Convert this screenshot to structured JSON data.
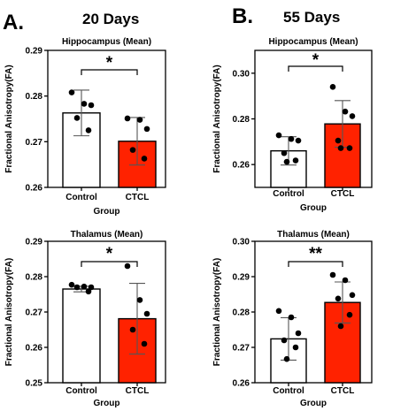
{
  "figure": {
    "groups": [
      {
        "letter": "A.",
        "condition": "20 Days"
      },
      {
        "letter": "B.",
        "condition": "55 Days"
      }
    ]
  },
  "chart_data": [
    {
      "type": "bar",
      "title": "Hippocampus (Mean)",
      "xlabel": "Group",
      "ylabel": "Fractional Anisotropy(FA)",
      "ylim": [
        0.26,
        0.29
      ],
      "yticks": [
        "0.26",
        "0.27",
        "0.28",
        "0.29"
      ],
      "categories": [
        "Control",
        "CTCL"
      ],
      "values": [
        0.2763,
        0.2701
      ],
      "errors": [
        0.005,
        0.0052
      ],
      "fill_colors": [
        "#ffffff",
        "#ff2200"
      ],
      "points": [
        [
          0.2808,
          0.2783,
          0.278,
          0.2752,
          0.2725
        ],
        [
          0.2751,
          0.2748,
          0.2728,
          0.2682,
          0.2663
        ]
      ],
      "significance": "*"
    },
    {
      "type": "bar",
      "title": "Hippocampus (Mean)",
      "xlabel": "Group",
      "ylabel": "Fractional Anisotropy(FA)",
      "ylim": [
        0.25,
        0.31
      ],
      "yticks": [
        "0.26",
        "0.28",
        "0.30"
      ],
      "categories": [
        "Control",
        "CTCL"
      ],
      "values": [
        0.266,
        0.2778
      ],
      "errors": [
        0.0062,
        0.0102
      ],
      "fill_colors": [
        "#ffffff",
        "#ff2200"
      ],
      "points": [
        [
          0.2728,
          0.2712,
          0.2705,
          0.265,
          0.2618,
          0.2612
        ],
        [
          0.294,
          0.2832,
          0.2812,
          0.2705,
          0.2672,
          0.2672
        ]
      ],
      "significance": "*"
    },
    {
      "type": "bar",
      "title": "Thalamus (Mean)",
      "xlabel": "Group",
      "ylabel": "Fractional Anisotropy(FA)",
      "ylim": [
        0.25,
        0.29
      ],
      "yticks": [
        "0.25",
        "0.26",
        "0.27",
        "0.28",
        "0.29"
      ],
      "categories": [
        "Control",
        "CTCL"
      ],
      "values": [
        0.2765,
        0.2681
      ],
      "errors": [
        0.0008,
        0.01
      ],
      "fill_colors": [
        "#ffffff",
        "#ff2200"
      ],
      "points": [
        [
          0.2777,
          0.2772,
          0.277,
          0.277,
          0.2758
        ],
        [
          0.283,
          0.2734,
          0.2695,
          0.265,
          0.261
        ]
      ],
      "significance": "*"
    },
    {
      "type": "bar",
      "title": "Thalamus (Mean)",
      "xlabel": "Group",
      "ylabel": "Fractional Anisotropy(FA)",
      "ylim": [
        0.26,
        0.3
      ],
      "yticks": [
        "0.26",
        "0.27",
        "0.28",
        "0.29",
        "0.30"
      ],
      "categories": [
        "Control",
        "CTCL"
      ],
      "values": [
        0.2724,
        0.2827
      ],
      "errors": [
        0.006,
        0.0058
      ],
      "fill_colors": [
        "#ffffff",
        "#ff2200"
      ],
      "points": [
        [
          0.2803,
          0.2785,
          0.274,
          0.272,
          0.27,
          0.2667
        ],
        [
          0.2905,
          0.289,
          0.2848,
          0.2838,
          0.2792,
          0.276
        ]
      ],
      "significance": "**"
    }
  ]
}
